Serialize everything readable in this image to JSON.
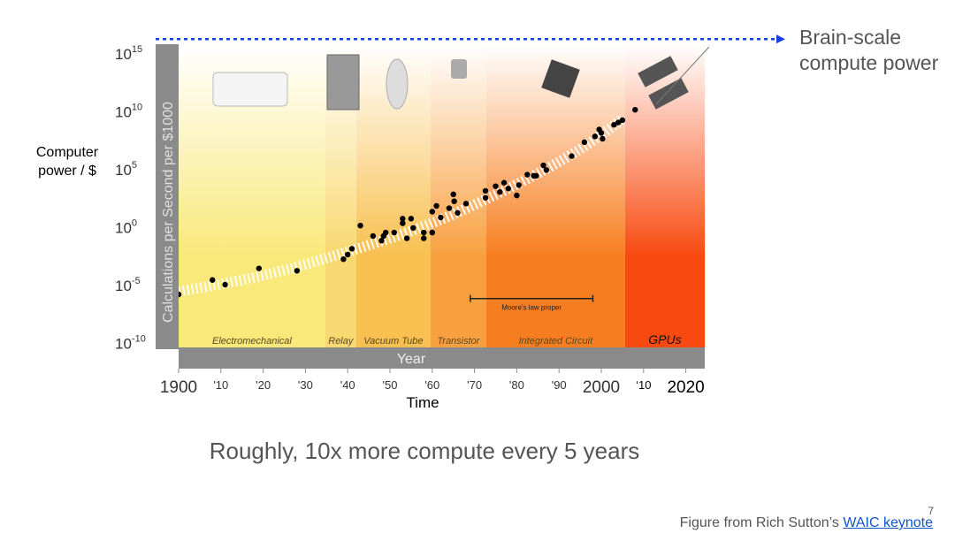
{
  "side_label": "Computer power / $",
  "annotation": {
    "text": "Brain-scale compute power",
    "line1": "Brain-scale",
    "line2": "compute power",
    "color": "#1a3fe0"
  },
  "caption": "Roughly, 10x more compute every 5 years",
  "footer": {
    "prefix": "Figure from Rich Sutton’s ",
    "link": "WAIC keynote"
  },
  "page_number": "7",
  "chart_data": {
    "type": "scatter",
    "ylabel": "Calculations per Second per $1000",
    "xlabel": "Year",
    "xlabel_outer": "Time",
    "yscale": "log",
    "ylim_log10": [
      -10,
      15
    ],
    "xlim": [
      1900,
      2025
    ],
    "yticks": [
      {
        "exp": "15"
      },
      {
        "exp": "10"
      },
      {
        "exp": "5"
      },
      {
        "exp": "0"
      },
      {
        "exp": "-5"
      },
      {
        "exp": "-10"
      }
    ],
    "ytick_values_log10": [
      15,
      10,
      5,
      0,
      -5,
      -10
    ],
    "xticks": [
      {
        "year": 1900,
        "label": "1900"
      },
      {
        "year": 1910,
        "label": "'10"
      },
      {
        "year": 1920,
        "label": "'20"
      },
      {
        "year": 1930,
        "label": "'30"
      },
      {
        "year": 1940,
        "label": "'40"
      },
      {
        "year": 1950,
        "label": "'50"
      },
      {
        "year": 1960,
        "label": "'60"
      },
      {
        "year": 1970,
        "label": "'70"
      },
      {
        "year": 1980,
        "label": "'80"
      },
      {
        "year": 1990,
        "label": "'90"
      },
      {
        "year": 2000,
        "label": "2000"
      },
      {
        "year": 2010,
        "label": "‘10"
      },
      {
        "year": 2020,
        "label": "2020"
      }
    ],
    "eras": [
      {
        "name": "Electromechanical",
        "start": 1900,
        "end": 1934.7,
        "color": "#f9e87a"
      },
      {
        "name": "Relay",
        "start": 1934.7,
        "end": 1942,
        "color": "#f8d870"
      },
      {
        "name": "Vacuum Tube",
        "start": 1942,
        "end": 1959.6,
        "color": "#f8c050"
      },
      {
        "name": "Transistor",
        "start": 1959.6,
        "end": 1972.8,
        "color": "#f8a040"
      },
      {
        "name": "Integrated Circuit",
        "start": 1972.8,
        "end": 2005.6,
        "color": "#f77e20"
      },
      {
        "name": "GPUs",
        "start": 2005.6,
        "end": 2024.5,
        "color": "#f84a10"
      }
    ],
    "moores_law": {
      "label": "Moore's law proper",
      "start": 1969,
      "end": 1998,
      "level_log10": -6.2
    },
    "brain_scale_log10": 16.2,
    "trend_log10": [
      [
        1900,
        -5.6
      ],
      [
        1920,
        -4.3
      ],
      [
        1940,
        -2.2
      ],
      [
        1960,
        0.2
      ],
      [
        1980,
        3.6
      ],
      [
        1995,
        6.6
      ],
      [
        2005,
        9.3
      ]
    ],
    "points": [
      [
        1900,
        -5.85
      ],
      [
        1908,
        -4.6
      ],
      [
        1911,
        -5
      ],
      [
        1919,
        -3.6
      ],
      [
        1928,
        -3.8
      ],
      [
        1939,
        -2.8
      ],
      [
        1940,
        -2.4
      ],
      [
        1941,
        -1.9
      ],
      [
        1943,
        0.1
      ],
      [
        1946,
        -0.8
      ],
      [
        1948,
        -1.2
      ],
      [
        1948.5,
        -0.8
      ],
      [
        1949,
        -0.5
      ],
      [
        1951,
        -0.5
      ],
      [
        1953,
        0.7
      ],
      [
        1953,
        0.3
      ],
      [
        1954,
        -1
      ],
      [
        1955,
        0.7
      ],
      [
        1955.5,
        -0.1
      ],
      [
        1958,
        -0.5
      ],
      [
        1958,
        -1
      ],
      [
        1960,
        -0.5
      ],
      [
        1960,
        1.3
      ],
      [
        1961,
        1.8
      ],
      [
        1962,
        0.8
      ],
      [
        1964,
        1.6
      ],
      [
        1965,
        2.8
      ],
      [
        1965.2,
        2.2
      ],
      [
        1966,
        1.2
      ],
      [
        1968,
        2
      ],
      [
        1972.6,
        3.1
      ],
      [
        1972.6,
        2.5
      ],
      [
        1975,
        3.5
      ],
      [
        1976,
        3
      ],
      [
        1977,
        3.8
      ],
      [
        1978,
        3.3
      ],
      [
        1980,
        2.7
      ],
      [
        1980.5,
        3.6
      ],
      [
        1982.5,
        4.5
      ],
      [
        1984,
        4.4
      ],
      [
        1984.6,
        4.4
      ],
      [
        1986.3,
        5.3
      ],
      [
        1987,
        4.9
      ],
      [
        1993,
        6.1
      ],
      [
        1996,
        7.3
      ],
      [
        1998.5,
        7.8
      ],
      [
        1999.5,
        8.4
      ],
      [
        2000,
        8.1
      ],
      [
        2000.3,
        7.6
      ],
      [
        2003,
        8.8
      ],
      [
        2004,
        9
      ],
      [
        2005,
        9.2
      ],
      [
        2008,
        10.1
      ]
    ]
  }
}
